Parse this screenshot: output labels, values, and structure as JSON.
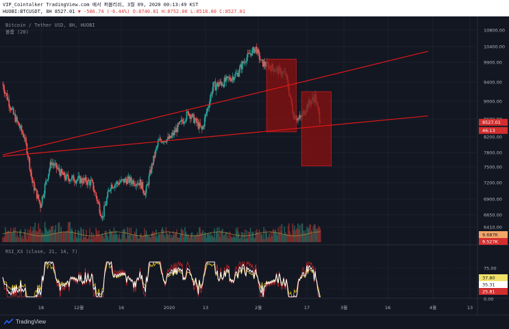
{
  "header": {
    "line1": "VIP_Cointalker TradingView.com 에서 퍼블리쉬, 3월 09, 2020 00:13:49 KST",
    "symbol": "HUOBI:BTCUSDT, 8H",
    "last": "8527.01",
    "change": "▼ -586.74 (-6.44%)",
    "open": "O:8740.81",
    "high": "H:8752.00",
    "low": "L:8518.00",
    "close": "C:8527.01"
  },
  "legend": {
    "pair": "Bitcoin / Tether USD, 8H, HUOBI",
    "volume": "볼륨 (20)",
    "rsi": "RSI_X3 (close, 21, 14, 7)"
  },
  "price_axis": {
    "ticks": [
      "10800.00",
      "10400.00",
      "9900.00",
      "9400.00",
      "9000.00",
      "8600.00",
      "8200.00",
      "7800.00",
      "7500.00",
      "7200.00",
      "6900.00",
      "6650.00",
      "6410.00"
    ],
    "last_label": "8527.01",
    "countdown_label": "46:13",
    "volume_labels": [
      "9.687K",
      "9.527K"
    ]
  },
  "rsi_axis": {
    "ticks": [
      "75.00",
      "50.00",
      "25.00",
      "0.00"
    ],
    "value_labels": [
      "37.80",
      "35.31",
      "25.81"
    ]
  },
  "time_axis": {
    "labels": [
      "18",
      "12월",
      "16",
      "2020",
      "13",
      "2월",
      "17",
      "3월",
      "16",
      "4월",
      "13"
    ]
  },
  "footer": {
    "brand": "TradingView"
  },
  "colors": {
    "background": "#131722",
    "bull": "#26a69a",
    "bear": "#ef5350",
    "trendline": "#e01818",
    "box": "#8b1010",
    "rsi_main": "#ffffff",
    "rsi_fast": "#c62828",
    "rsi_slow": "#e6c229"
  },
  "chart_data": {
    "type": "candlestick",
    "symbol": "BTCUSDT",
    "timeframe": "8H",
    "exchange": "HUOBI",
    "ylim": [
      6300,
      11000
    ],
    "waypoints": [
      {
        "t": "Nov 11",
        "p": 9350
      },
      {
        "t": "Nov 15",
        "p": 8700
      },
      {
        "t": "Nov 19",
        "p": 8200
      },
      {
        "t": "Nov 22",
        "p": 7200
      },
      {
        "t": "Nov 25",
        "p": 6800
      },
      {
        "t": "Nov 29",
        "p": 7600
      },
      {
        "t": "Dec 4",
        "p": 7300
      },
      {
        "t": "Dec 10",
        "p": 7250
      },
      {
        "t": "Dec 14",
        "p": 7200
      },
      {
        "t": "Dec 18",
        "p": 6600
      },
      {
        "t": "Dec 21",
        "p": 7150
      },
      {
        "t": "Dec 27",
        "p": 7250
      },
      {
        "t": "Jan 1",
        "p": 7200
      },
      {
        "t": "Jan 3",
        "p": 7000
      },
      {
        "t": "Jan 8",
        "p": 8100
      },
      {
        "t": "Jan 12",
        "p": 8150
      },
      {
        "t": "Jan 19",
        "p": 8750
      },
      {
        "t": "Jan 24",
        "p": 8350
      },
      {
        "t": "Jan 28",
        "p": 9300
      },
      {
        "t": "Feb 1",
        "p": 9400
      },
      {
        "t": "Feb 6",
        "p": 9600
      },
      {
        "t": "Feb 10",
        "p": 10100
      },
      {
        "t": "Feb 13",
        "p": 10350
      },
      {
        "t": "Feb 15",
        "p": 9900
      },
      {
        "t": "Feb 18",
        "p": 9800
      },
      {
        "t": "Feb 21",
        "p": 9700
      },
      {
        "t": "Feb 24",
        "p": 9600
      },
      {
        "t": "Feb 27",
        "p": 8700
      },
      {
        "t": "Feb 29",
        "p": 8600
      },
      {
        "t": "Mar 1",
        "p": 8650
      },
      {
        "t": "Mar 3",
        "p": 8900
      },
      {
        "t": "Mar 6",
        "p": 9100
      },
      {
        "t": "Mar 8",
        "p": 8527
      }
    ],
    "trendlines": [
      {
        "from": {
          "t": "Nov 11",
          "p": 7750
        },
        "to": {
          "t": "Apr 17",
          "p": 10250
        }
      },
      {
        "from": {
          "t": "Nov 11",
          "p": 7720
        },
        "to": {
          "t": "Apr 17",
          "p": 8670
        }
      }
    ],
    "boxes": [
      {
        "t_start": "Feb 17",
        "t_end": "Feb 28",
        "p_top": 10000,
        "p_bottom": 8310
      },
      {
        "t_start": "Mar 1",
        "t_end": "Mar 12",
        "p_top": 9200,
        "p_bottom": 7520
      }
    ],
    "rsi_ylim": [
      0,
      100
    ],
    "rsi_levels": [
      75,
      50,
      25
    ]
  }
}
